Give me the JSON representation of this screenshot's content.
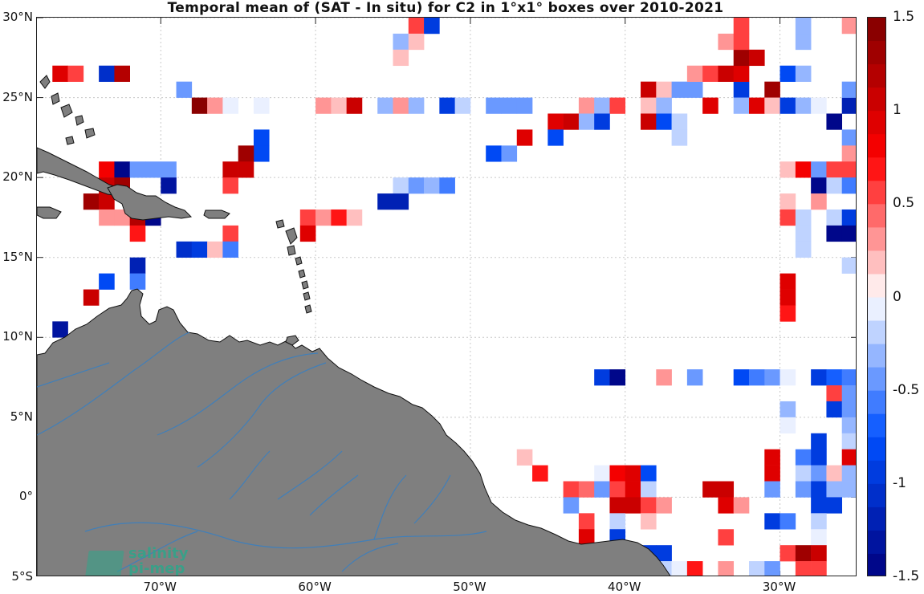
{
  "title": "Temporal mean of (SAT - In situ) for C2 in 1°x1° boxes over 2010-2021",
  "map": {
    "lon_range": [
      -78,
      -25
    ],
    "lat_range": [
      -5,
      30
    ],
    "lat_ticks": [
      {
        "value": 30,
        "label": "30°N"
      },
      {
        "value": 25,
        "label": "25°N"
      },
      {
        "value": 20,
        "label": "20°N"
      },
      {
        "value": 15,
        "label": "15°N"
      },
      {
        "value": 10,
        "label": "10°N"
      },
      {
        "value": 5,
        "label": "5°N"
      },
      {
        "value": 0,
        "label": "0°"
      },
      {
        "value": -5,
        "label": "5°S"
      }
    ],
    "lon_ticks": [
      {
        "value": -70,
        "label": "70°W"
      },
      {
        "value": -60,
        "label": "60°W"
      },
      {
        "value": -50,
        "label": "50°W"
      },
      {
        "value": -40,
        "label": "40°W"
      },
      {
        "value": -30,
        "label": "30°W"
      }
    ],
    "land_color": "#7f7f7f",
    "river_color": "#3a7fc0",
    "grid": true
  },
  "colorbar": {
    "range": [
      -1.5,
      1.5
    ],
    "ticks": [
      {
        "value": 1.5,
        "label": "1.5"
      },
      {
        "value": 1,
        "label": "1"
      },
      {
        "value": 0.5,
        "label": "0.5"
      },
      {
        "value": 0,
        "label": "0"
      },
      {
        "value": -0.5,
        "label": "-0.5"
      },
      {
        "value": -1,
        "label": "-1"
      },
      {
        "value": -1.5,
        "label": "-1.5"
      }
    ],
    "low_color": "#00007f",
    "mid_color": "#ffffff",
    "high_color": "#7f0000"
  },
  "logo": {
    "line1": "salinity",
    "line2": "pi-mep"
  },
  "chart_data": {
    "type": "heatmap",
    "title": "Temporal mean of (SAT - In situ) for C2 in 1°x1° boxes over 2010-2021",
    "cell_size_deg": 1,
    "cells": [
      {
        "lon": -54,
        "lat": 29,
        "v": 0.5
      },
      {
        "lon": -53,
        "lat": 29,
        "v": -0.9
      },
      {
        "lon": -55,
        "lat": 28,
        "v": -0.3
      },
      {
        "lon": -54,
        "lat": 28,
        "v": 0.2
      },
      {
        "lon": -55,
        "lat": 27,
        "v": 0.15
      },
      {
        "lon": -77,
        "lat": 26,
        "v": 0.9
      },
      {
        "lon": -76,
        "lat": 26,
        "v": 0.6
      },
      {
        "lon": -74,
        "lat": 26,
        "v": -1.1
      },
      {
        "lon": -73,
        "lat": 26,
        "v": 1.2
      },
      {
        "lon": -69,
        "lat": 25,
        "v": -0.5
      },
      {
        "lon": -68,
        "lat": 24,
        "v": 1.4
      },
      {
        "lon": -67,
        "lat": 24,
        "v": 0.3
      },
      {
        "lon": -66,
        "lat": 24,
        "v": -0.1
      },
      {
        "lon": -64,
        "lat": 24,
        "v": -0.1
      },
      {
        "lon": -60,
        "lat": 24,
        "v": 0.3
      },
      {
        "lon": -59,
        "lat": 24,
        "v": 0.2
      },
      {
        "lon": -58,
        "lat": 24,
        "v": 1.0
      },
      {
        "lon": -56,
        "lat": 24,
        "v": -0.3
      },
      {
        "lon": -55,
        "lat": 24,
        "v": 0.3
      },
      {
        "lon": -54,
        "lat": 24,
        "v": -0.3
      },
      {
        "lon": -52,
        "lat": 24,
        "v": -0.9
      },
      {
        "lon": -51,
        "lat": 24,
        "v": -0.2
      },
      {
        "lon": -49,
        "lat": 24,
        "v": -0.5
      },
      {
        "lon": -48,
        "lat": 24,
        "v": -0.5
      },
      {
        "lon": -47,
        "lat": 24,
        "v": -0.5
      },
      {
        "lon": -43,
        "lat": 24,
        "v": 0.3
      },
      {
        "lon": -42,
        "lat": 24,
        "v": -0.3
      },
      {
        "lon": -41,
        "lat": 24,
        "v": 0.5
      },
      {
        "lon": -39,
        "lat": 25,
        "v": 1.0
      },
      {
        "lon": -38,
        "lat": 25,
        "v": 0.2
      },
      {
        "lon": -37,
        "lat": 25,
        "v": -0.4
      },
      {
        "lon": -36,
        "lat": 25,
        "v": -0.4
      },
      {
        "lon": -33,
        "lat": 25,
        "v": -0.9
      },
      {
        "lon": -31,
        "lat": 25,
        "v": 1.3
      },
      {
        "lon": -39,
        "lat": 24,
        "v": 0.2
      },
      {
        "lon": -38,
        "lat": 24,
        "v": -0.3
      },
      {
        "lon": -35,
        "lat": 24,
        "v": 0.9
      },
      {
        "lon": -33,
        "lat": 24,
        "v": -0.3
      },
      {
        "lon": -32,
        "lat": 24,
        "v": 0.9
      },
      {
        "lon": -31,
        "lat": 24,
        "v": 0.2
      },
      {
        "lon": -30,
        "lat": 24,
        "v": -0.9
      },
      {
        "lon": -29,
        "lat": 24,
        "v": -0.3
      },
      {
        "lon": -28,
        "lat": 24,
        "v": -0.1
      },
      {
        "lon": -26,
        "lat": 24,
        "v": -1.2
      },
      {
        "lon": -26,
        "lat": 25,
        "v": -0.4
      },
      {
        "lon": -30,
        "lat": 26,
        "v": -0.8
      },
      {
        "lon": -29,
        "lat": 26,
        "v": -0.3
      },
      {
        "lon": -36,
        "lat": 26,
        "v": 0.3
      },
      {
        "lon": -35,
        "lat": 26,
        "v": 0.6
      },
      {
        "lon": -34,
        "lat": 26,
        "v": 1.0
      },
      {
        "lon": -33,
        "lat": 26,
        "v": 0.9
      },
      {
        "lon": -33,
        "lat": 27,
        "v": 1.3
      },
      {
        "lon": -32,
        "lat": 27,
        "v": 1.0
      },
      {
        "lon": -34,
        "lat": 28,
        "v": 0.3
      },
      {
        "lon": -33,
        "lat": 28,
        "v": 0.5
      },
      {
        "lon": -29,
        "lat": 28,
        "v": -0.3
      },
      {
        "lon": -33,
        "lat": 29,
        "v": 0.6
      },
      {
        "lon": -29,
        "lat": 29,
        "v": -0.3
      },
      {
        "lon": -26,
        "lat": 29,
        "v": 0.35
      },
      {
        "lon": -45,
        "lat": 23,
        "v": 0.9
      },
      {
        "lon": -44,
        "lat": 23,
        "v": 1.0
      },
      {
        "lon": -43,
        "lat": 23,
        "v": -0.3
      },
      {
        "lon": -42,
        "lat": 23,
        "v": -0.9
      },
      {
        "lon": -39,
        "lat": 23,
        "v": 1.0
      },
      {
        "lon": -38,
        "lat": 23,
        "v": -0.8
      },
      {
        "lon": -37,
        "lat": 23,
        "v": -0.15
      },
      {
        "lon": -27,
        "lat": 23,
        "v": -1.5
      },
      {
        "lon": -47,
        "lat": 22,
        "v": 0.9
      },
      {
        "lon": -45,
        "lat": 22,
        "v": -0.8
      },
      {
        "lon": -37,
        "lat": 22,
        "v": -0.15
      },
      {
        "lon": -26,
        "lat": 22,
        "v": -0.5
      },
      {
        "lon": -49,
        "lat": 21,
        "v": -0.8
      },
      {
        "lon": -48,
        "lat": 21,
        "v": -0.4
      },
      {
        "lon": -26,
        "lat": 21,
        "v": 0.3
      },
      {
        "lon": -64,
        "lat": 22,
        "v": -0.8
      },
      {
        "lon": -64,
        "lat": 21,
        "v": -0.8
      },
      {
        "lon": -65,
        "lat": 21,
        "v": 1.3
      },
      {
        "lon": -66,
        "lat": 20,
        "v": 1.0
      },
      {
        "lon": -65,
        "lat": 20,
        "v": 1.0
      },
      {
        "lon": -66,
        "lat": 19,
        "v": 0.5
      },
      {
        "lon": -74,
        "lat": 20,
        "v": 0.8
      },
      {
        "lon": -73,
        "lat": 20,
        "v": -1.4
      },
      {
        "lon": -72,
        "lat": 20,
        "v": -0.5
      },
      {
        "lon": -71,
        "lat": 20,
        "v": -0.4
      },
      {
        "lon": -70,
        "lat": 20,
        "v": -0.5
      },
      {
        "lon": -74,
        "lat": 19,
        "v": 1.0
      },
      {
        "lon": -73,
        "lat": 19,
        "v": 1.3
      },
      {
        "lon": -70,
        "lat": 19,
        "v": -1.3
      },
      {
        "lon": -75,
        "lat": 18,
        "v": 1.3
      },
      {
        "lon": -74,
        "lat": 18,
        "v": 1.0
      },
      {
        "lon": -74,
        "lat": 17,
        "v": 0.3
      },
      {
        "lon": -73,
        "lat": 17,
        "v": 0.3
      },
      {
        "lon": -72,
        "lat": 17,
        "v": 1.2
      },
      {
        "lon": -71,
        "lat": 17,
        "v": -1.5
      },
      {
        "lon": -72,
        "lat": 16,
        "v": 0.7
      },
      {
        "lon": -55,
        "lat": 19,
        "v": -0.2
      },
      {
        "lon": -54,
        "lat": 19,
        "v": -0.5
      },
      {
        "lon": -53,
        "lat": 19,
        "v": -0.3
      },
      {
        "lon": -52,
        "lat": 19,
        "v": -0.6
      },
      {
        "lon": -56,
        "lat": 18,
        "v": -1.2
      },
      {
        "lon": -55,
        "lat": 18,
        "v": -1.2
      },
      {
        "lon": -61,
        "lat": 17,
        "v": 0.5
      },
      {
        "lon": -60,
        "lat": 17,
        "v": 0.3
      },
      {
        "lon": -59,
        "lat": 17,
        "v": 0.7
      },
      {
        "lon": -58,
        "lat": 17,
        "v": 0.15
      },
      {
        "lon": -61,
        "lat": 16,
        "v": 0.9
      },
      {
        "lon": -66,
        "lat": 16,
        "v": 0.5
      },
      {
        "lon": -69,
        "lat": 15,
        "v": -1.1
      },
      {
        "lon": -68,
        "lat": 15,
        "v": -0.9
      },
      {
        "lon": -67,
        "lat": 15,
        "v": 0.2
      },
      {
        "lon": -66,
        "lat": 15,
        "v": -0.6
      },
      {
        "lon": -72,
        "lat": 14,
        "v": -1.2
      },
      {
        "lon": -74,
        "lat": 13,
        "v": -0.8
      },
      {
        "lon": -72,
        "lat": 13,
        "v": -0.6
      },
      {
        "lon": -75,
        "lat": 12,
        "v": 1.0
      },
      {
        "lon": -77,
        "lat": 10,
        "v": -1.3
      },
      {
        "lon": -30,
        "lat": 20,
        "v": 0.2
      },
      {
        "lon": -29,
        "lat": 20,
        "v": 0.8
      },
      {
        "lon": -28,
        "lat": 20,
        "v": -0.4
      },
      {
        "lon": -27,
        "lat": 20,
        "v": 0.6
      },
      {
        "lon": -26,
        "lat": 20,
        "v": 0.6
      },
      {
        "lon": -28,
        "lat": 19,
        "v": -1.4
      },
      {
        "lon": -27,
        "lat": 19,
        "v": -0.2
      },
      {
        "lon": -26,
        "lat": 19,
        "v": -0.6
      },
      {
        "lon": -30,
        "lat": 18,
        "v": 0.2
      },
      {
        "lon": -28,
        "lat": 18,
        "v": 0.3
      },
      {
        "lon": -30,
        "lat": 17,
        "v": 0.6
      },
      {
        "lon": -29,
        "lat": 17,
        "v": -0.2
      },
      {
        "lon": -27,
        "lat": 17,
        "v": -0.2
      },
      {
        "lon": -26,
        "lat": 17,
        "v": -1.0
      },
      {
        "lon": -27,
        "lat": 16,
        "v": -1.5
      },
      {
        "lon": -26,
        "lat": 16,
        "v": -1.5
      },
      {
        "lon": -29,
        "lat": 16,
        "v": -0.2
      },
      {
        "lon": -29,
        "lat": 15,
        "v": -0.2
      },
      {
        "lon": -26,
        "lat": 14,
        "v": -0.2
      },
      {
        "lon": -30,
        "lat": 13,
        "v": 0.9
      },
      {
        "lon": -30,
        "lat": 12,
        "v": 0.9
      },
      {
        "lon": -30,
        "lat": 11,
        "v": 0.7
      },
      {
        "lon": -42,
        "lat": 7,
        "v": -0.9
      },
      {
        "lon": -41,
        "lat": 7,
        "v": -1.5
      },
      {
        "lon": -38,
        "lat": 7,
        "v": 0.3
      },
      {
        "lon": -36,
        "lat": 7,
        "v": -0.4
      },
      {
        "lon": -33,
        "lat": 7,
        "v": -0.8
      },
      {
        "lon": -32,
        "lat": 7,
        "v": -0.6
      },
      {
        "lon": -31,
        "lat": 7,
        "v": -0.4
      },
      {
        "lon": -30,
        "lat": 7,
        "v": -0.1
      },
      {
        "lon": -28,
        "lat": 7,
        "v": -1.0
      },
      {
        "lon": -27,
        "lat": 7,
        "v": -0.7
      },
      {
        "lon": -26,
        "lat": 7,
        "v": -0.6
      },
      {
        "lon": -27,
        "lat": 6,
        "v": 0.5
      },
      {
        "lon": -26,
        "lat": 6,
        "v": -0.5
      },
      {
        "lon": -30,
        "lat": 5,
        "v": -0.3
      },
      {
        "lon": -27,
        "lat": 5,
        "v": -0.9
      },
      {
        "lon": -26,
        "lat": 5,
        "v": -0.5
      },
      {
        "lon": -30,
        "lat": 4,
        "v": -0.1
      },
      {
        "lon": -26,
        "lat": 4,
        "v": -0.3
      },
      {
        "lon": -28,
        "lat": 3,
        "v": -0.9
      },
      {
        "lon": -26,
        "lat": 3,
        "v": -0.2
      },
      {
        "lon": -29,
        "lat": 2,
        "v": -0.6
      },
      {
        "lon": -28,
        "lat": 2,
        "v": -1.0
      },
      {
        "lon": -26,
        "lat": 2,
        "v": 0.9
      },
      {
        "lon": -31,
        "lat": 2,
        "v": 0.9
      },
      {
        "lon": -31,
        "lat": 1,
        "v": 0.9
      },
      {
        "lon": -47,
        "lat": 2,
        "v": 0.2
      },
      {
        "lon": -46,
        "lat": 1,
        "v": 0.7
      },
      {
        "lon": -42,
        "lat": 1,
        "v": -0.1
      },
      {
        "lon": -41,
        "lat": 1,
        "v": 0.8
      },
      {
        "lon": -40,
        "lat": 1,
        "v": 0.9
      },
      {
        "lon": -39,
        "lat": 1,
        "v": -0.8
      },
      {
        "lon": -29,
        "lat": 1,
        "v": -0.2
      },
      {
        "lon": -28,
        "lat": 1,
        "v": -0.5
      },
      {
        "lon": -27,
        "lat": 1,
        "v": 0.2
      },
      {
        "lon": -26,
        "lat": 1,
        "v": -0.3
      },
      {
        "lon": -44,
        "lat": 0,
        "v": 0.6
      },
      {
        "lon": -43,
        "lat": 0,
        "v": 0.4
      },
      {
        "lon": -42,
        "lat": 0,
        "v": -0.4
      },
      {
        "lon": -41,
        "lat": 0,
        "v": 0.6
      },
      {
        "lon": -40,
        "lat": 0,
        "v": 0.9
      },
      {
        "lon": -39,
        "lat": 0,
        "v": -0.2
      },
      {
        "lon": -35,
        "lat": 0,
        "v": 1.0
      },
      {
        "lon": -34,
        "lat": 0,
        "v": 1.0
      },
      {
        "lon": -31,
        "lat": 0,
        "v": -0.5
      },
      {
        "lon": -29,
        "lat": 0,
        "v": -0.4
      },
      {
        "lon": -28,
        "lat": 0,
        "v": -0.9
      },
      {
        "lon": -27,
        "lat": 0,
        "v": -0.3
      },
      {
        "lon": -26,
        "lat": 0,
        "v": -0.3
      },
      {
        "lon": -44,
        "lat": -1,
        "v": -0.4
      },
      {
        "lon": -41,
        "lat": -1,
        "v": 1.0
      },
      {
        "lon": -40,
        "lat": -1,
        "v": 1.0
      },
      {
        "lon": -39,
        "lat": -1,
        "v": 0.6
      },
      {
        "lon": -38,
        "lat": -1,
        "v": 0.3
      },
      {
        "lon": -34,
        "lat": -1,
        "v": 0.9
      },
      {
        "lon": -33,
        "lat": -1,
        "v": 0.3
      },
      {
        "lon": -28,
        "lat": -1,
        "v": -0.9
      },
      {
        "lon": -27,
        "lat": -1,
        "v": -1.0
      },
      {
        "lon": -43,
        "lat": -2,
        "v": 0.5
      },
      {
        "lon": -41,
        "lat": -2,
        "v": -0.2
      },
      {
        "lon": -39,
        "lat": -2,
        "v": 0.2
      },
      {
        "lon": -31,
        "lat": -2,
        "v": -0.9
      },
      {
        "lon": -30,
        "lat": -2,
        "v": -0.6
      },
      {
        "lon": -28,
        "lat": -2,
        "v": -0.2
      },
      {
        "lon": -43,
        "lat": -3,
        "v": 0.9
      },
      {
        "lon": -41,
        "lat": -3,
        "v": -0.9
      },
      {
        "lon": -34,
        "lat": -3,
        "v": 0.5
      },
      {
        "lon": -28,
        "lat": -3,
        "v": -0.1
      },
      {
        "lon": -39,
        "lat": -4,
        "v": -0.9
      },
      {
        "lon": -38,
        "lat": -4,
        "v": -0.9
      },
      {
        "lon": -30,
        "lat": -4,
        "v": 0.5
      },
      {
        "lon": -29,
        "lat": -4,
        "v": 1.3
      },
      {
        "lon": -28,
        "lat": -4,
        "v": 1.0
      },
      {
        "lon": -38,
        "lat": -5,
        "v": -0.2
      },
      {
        "lon": -37,
        "lat": -5,
        "v": -0.1
      },
      {
        "lon": -36,
        "lat": -5,
        "v": 0.7
      },
      {
        "lon": -34,
        "lat": -5,
        "v": 0.3
      },
      {
        "lon": -32,
        "lat": -5,
        "v": -0.2
      },
      {
        "lon": -31,
        "lat": -5,
        "v": -0.4
      },
      {
        "lon": -29,
        "lat": -5,
        "v": 0.6
      },
      {
        "lon": -28,
        "lat": -5,
        "v": 0.6
      }
    ]
  }
}
